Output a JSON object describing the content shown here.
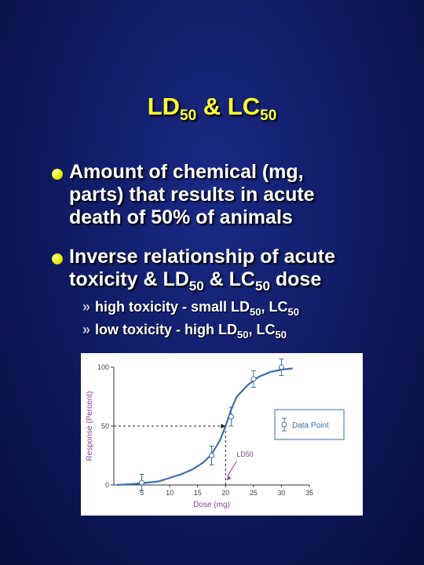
{
  "title": {
    "main": "LD",
    "sub1": "50",
    "mid": " & LC",
    "sub2": "50"
  },
  "bullets": [
    {
      "line1": "Amount of chemical (mg,",
      "line2": "parts) that results in acute",
      "line3": "death of 50% of animals"
    },
    {
      "line1": "Inverse relationship of acute",
      "line2a": "toxicity & LD",
      "line2sub1": "50",
      "line2b": " & LC",
      "line2sub2": "50",
      "line2c": " dose"
    }
  ],
  "sub_bullets": [
    {
      "marker": "»",
      "a": "high toxicity - small  LD",
      "s1": "50",
      "b": ",  LC",
      "s2": "50"
    },
    {
      "marker": "»",
      "a": "low toxicity - high LD",
      "s1": "50",
      "b": ", LC",
      "s2": "50"
    }
  ],
  "chart_data": {
    "type": "line",
    "xlabel": "Dose (mg)",
    "ylabel": "Response (Percent)",
    "xlim": [
      0,
      35
    ],
    "ylim": [
      0,
      100
    ],
    "x_ticks": [
      "5",
      "10",
      "15",
      "20",
      "25",
      "30",
      "35"
    ],
    "y_ticks": [
      "0",
      "50",
      "100"
    ],
    "curve": {
      "x": [
        0.5,
        4,
        8,
        10,
        12,
        14,
        16,
        17.5,
        19,
        20,
        21,
        22,
        24,
        26,
        28,
        30,
        32
      ],
      "y": [
        0,
        1,
        3,
        6,
        9,
        13,
        19,
        26,
        38,
        50,
        64,
        75,
        85,
        92,
        96,
        98,
        99
      ]
    },
    "data_points": [
      {
        "x": 5,
        "y": 2,
        "err": 7
      },
      {
        "x": 17.5,
        "y": 25,
        "err": 8
      },
      {
        "x": 21,
        "y": 58,
        "err": 8
      },
      {
        "x": 25,
        "y": 90,
        "err": 7
      },
      {
        "x": 30,
        "y": 100,
        "err": 7
      }
    ],
    "ld50": {
      "x": 20,
      "y": 50,
      "label": "LD50"
    },
    "legend": {
      "label": "Data Point",
      "position": "right"
    },
    "colors": {
      "curve": "#3d6fa8",
      "axis_text": "#8a3ea0",
      "ref": "#222222",
      "arrow": "#8a3ea0"
    }
  }
}
